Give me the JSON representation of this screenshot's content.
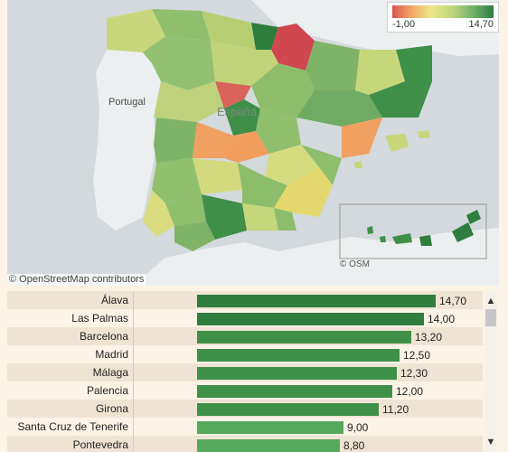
{
  "map": {
    "country_portugal": "Portugal",
    "country_spain": "España",
    "attribution": "© OpenStreetMap contributors",
    "inset_attribution": "© OSM",
    "legend": {
      "min": "-1,00",
      "max": "14,70"
    }
  },
  "colors": {
    "bar_dark": "#2f7d3f",
    "bar_mid": "#3f9048",
    "bar_light": "#55a95a"
  },
  "ranking": [
    {
      "name": "Álava",
      "value": 14.7,
      "display": "14,70"
    },
    {
      "name": "Las Palmas",
      "value": 14.0,
      "display": "14,00"
    },
    {
      "name": "Barcelona",
      "value": 13.2,
      "display": "13,20"
    },
    {
      "name": "Madrid",
      "value": 12.5,
      "display": "12,50"
    },
    {
      "name": "Málaga",
      "value": 12.3,
      "display": "12,30"
    },
    {
      "name": "Palencia",
      "value": 12.0,
      "display": "12,00"
    },
    {
      "name": "Girona",
      "value": 11.2,
      "display": "11,20"
    },
    {
      "name": "Santa Cruz de Tenerife",
      "value": 9.0,
      "display": "9,00"
    },
    {
      "name": "Pontevedra",
      "value": 8.8,
      "display": "8,80"
    }
  ],
  "scrollbar": {
    "up": "▲",
    "down": "▼"
  }
}
